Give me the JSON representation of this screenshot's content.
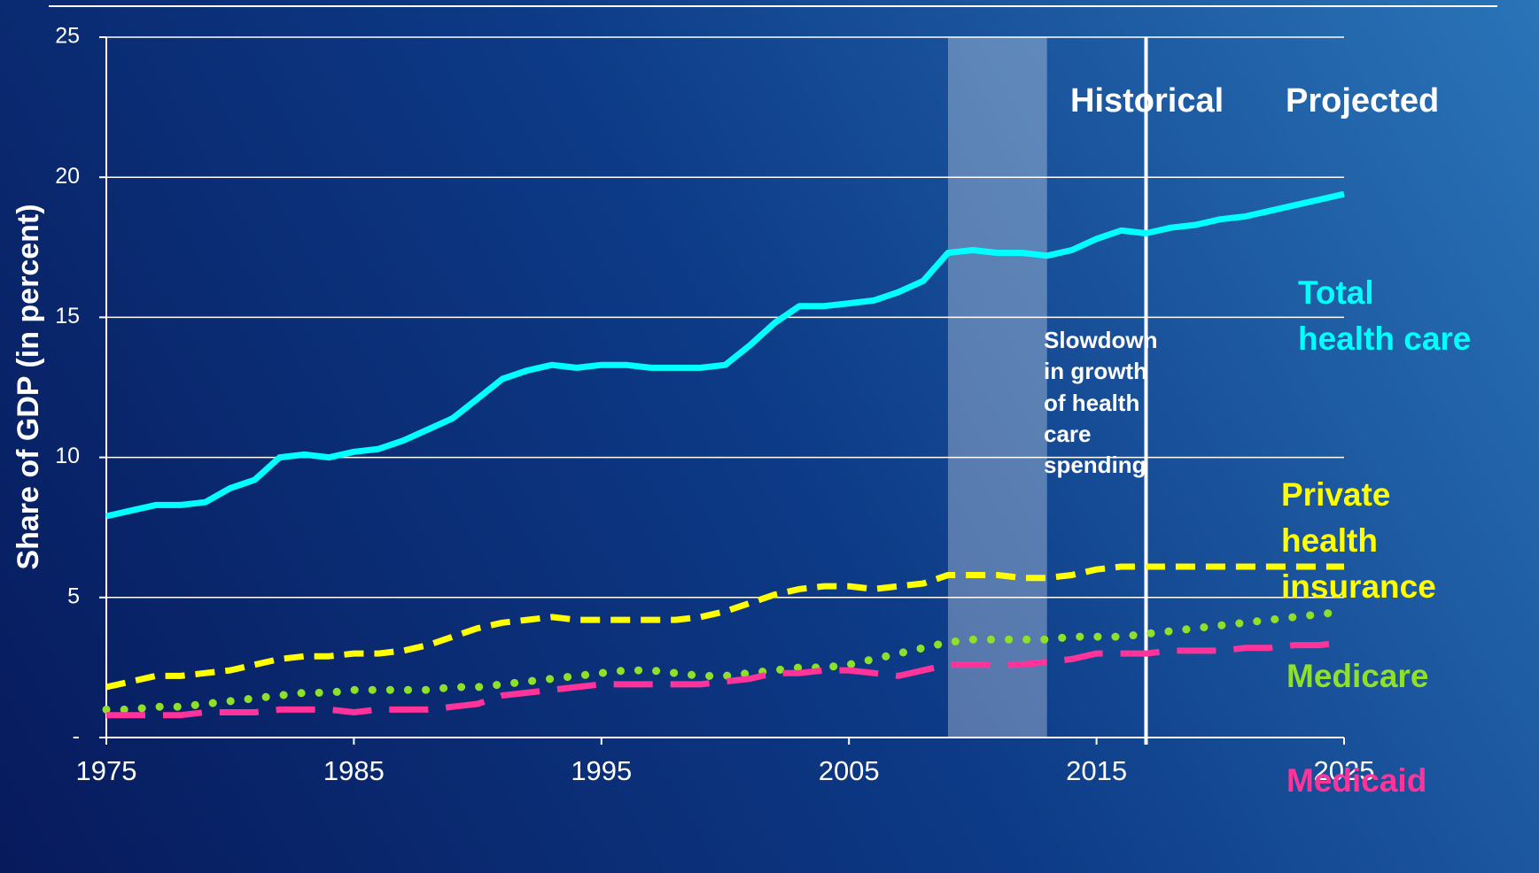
{
  "chart_data": {
    "type": "line",
    "y_label": "Share of GDP (in percent)",
    "annotations": {
      "historical": "Historical",
      "projected": "Projected",
      "slowdown": "Slowdown in growth of health care spending"
    },
    "shade": [
      2009,
      2013
    ],
    "divider": 2017,
    "x": [
      1975,
      1976,
      1977,
      1978,
      1979,
      1980,
      1981,
      1982,
      1983,
      1984,
      1985,
      1986,
      1987,
      1988,
      1989,
      1990,
      1991,
      1992,
      1993,
      1994,
      1995,
      1996,
      1997,
      1998,
      1999,
      2000,
      2001,
      2002,
      2003,
      2004,
      2005,
      2006,
      2007,
      2008,
      2009,
      2010,
      2011,
      2012,
      2013,
      2014,
      2015,
      2016,
      2017,
      2018,
      2019,
      2020,
      2021,
      2022,
      2023,
      2024,
      2025
    ],
    "series": [
      {
        "name": "Total health care",
        "color": "#00ffff",
        "style": "solid",
        "values": [
          7.9,
          8.1,
          8.3,
          8.3,
          8.4,
          8.9,
          9.2,
          10.0,
          10.1,
          10.0,
          10.2,
          10.3,
          10.6,
          11.0,
          11.4,
          12.1,
          12.8,
          13.1,
          13.3,
          13.2,
          13.3,
          13.3,
          13.2,
          13.2,
          13.2,
          13.3,
          14.0,
          14.8,
          15.4,
          15.4,
          15.5,
          15.6,
          15.9,
          16.3,
          17.3,
          17.4,
          17.3,
          17.3,
          17.2,
          17.4,
          17.8,
          18.1,
          18.0,
          18.2,
          18.3,
          18.5,
          18.6,
          18.8,
          19.0,
          19.2,
          19.4
        ]
      },
      {
        "name": "Private health insurance",
        "color": "#ffff00",
        "style": "dashed",
        "values": [
          1.8,
          2.0,
          2.2,
          2.2,
          2.3,
          2.4,
          2.6,
          2.8,
          2.9,
          2.9,
          3.0,
          3.0,
          3.1,
          3.3,
          3.6,
          3.9,
          4.1,
          4.2,
          4.3,
          4.2,
          4.2,
          4.2,
          4.2,
          4.2,
          4.3,
          4.5,
          4.8,
          5.1,
          5.3,
          5.4,
          5.4,
          5.3,
          5.4,
          5.5,
          5.8,
          5.8,
          5.8,
          5.7,
          5.7,
          5.8,
          6.0,
          6.1,
          6.1,
          6.1,
          6.1,
          6.1,
          6.1,
          6.1,
          6.1,
          6.1,
          6.1
        ]
      },
      {
        "name": "Medicare",
        "color": "#8ee02a",
        "style": "dotted",
        "values": [
          1.0,
          1.0,
          1.1,
          1.1,
          1.2,
          1.3,
          1.4,
          1.5,
          1.6,
          1.6,
          1.7,
          1.7,
          1.7,
          1.7,
          1.8,
          1.8,
          1.9,
          2.0,
          2.1,
          2.2,
          2.3,
          2.4,
          2.4,
          2.3,
          2.2,
          2.2,
          2.3,
          2.4,
          2.5,
          2.5,
          2.6,
          2.8,
          3.0,
          3.2,
          3.4,
          3.5,
          3.5,
          3.5,
          3.5,
          3.6,
          3.6,
          3.6,
          3.7,
          3.8,
          3.9,
          4.0,
          4.1,
          4.2,
          4.3,
          4.4,
          4.5
        ]
      },
      {
        "name": "Medicaid",
        "color": "#ff3399",
        "style": "longdash",
        "values": [
          0.8,
          0.8,
          0.8,
          0.8,
          0.9,
          0.9,
          0.9,
          1.0,
          1.0,
          1.0,
          0.9,
          1.0,
          1.0,
          1.0,
          1.1,
          1.2,
          1.5,
          1.6,
          1.7,
          1.8,
          1.9,
          1.9,
          1.9,
          1.9,
          1.9,
          2.0,
          2.1,
          2.3,
          2.3,
          2.4,
          2.4,
          2.3,
          2.2,
          2.4,
          2.6,
          2.6,
          2.6,
          2.6,
          2.7,
          2.8,
          3.0,
          3.0,
          3.0,
          3.1,
          3.1,
          3.1,
          3.2,
          3.2,
          3.3,
          3.3,
          3.4
        ]
      }
    ],
    "xlim": [
      1975,
      2025
    ],
    "xticks": [
      1975,
      1985,
      1995,
      2005,
      2015,
      2025
    ],
    "ylim": [
      0,
      25
    ],
    "yticks": [
      {
        "value": 0,
        "label": "-"
      },
      5,
      10,
      15,
      20,
      25
    ],
    "grid": true
  }
}
